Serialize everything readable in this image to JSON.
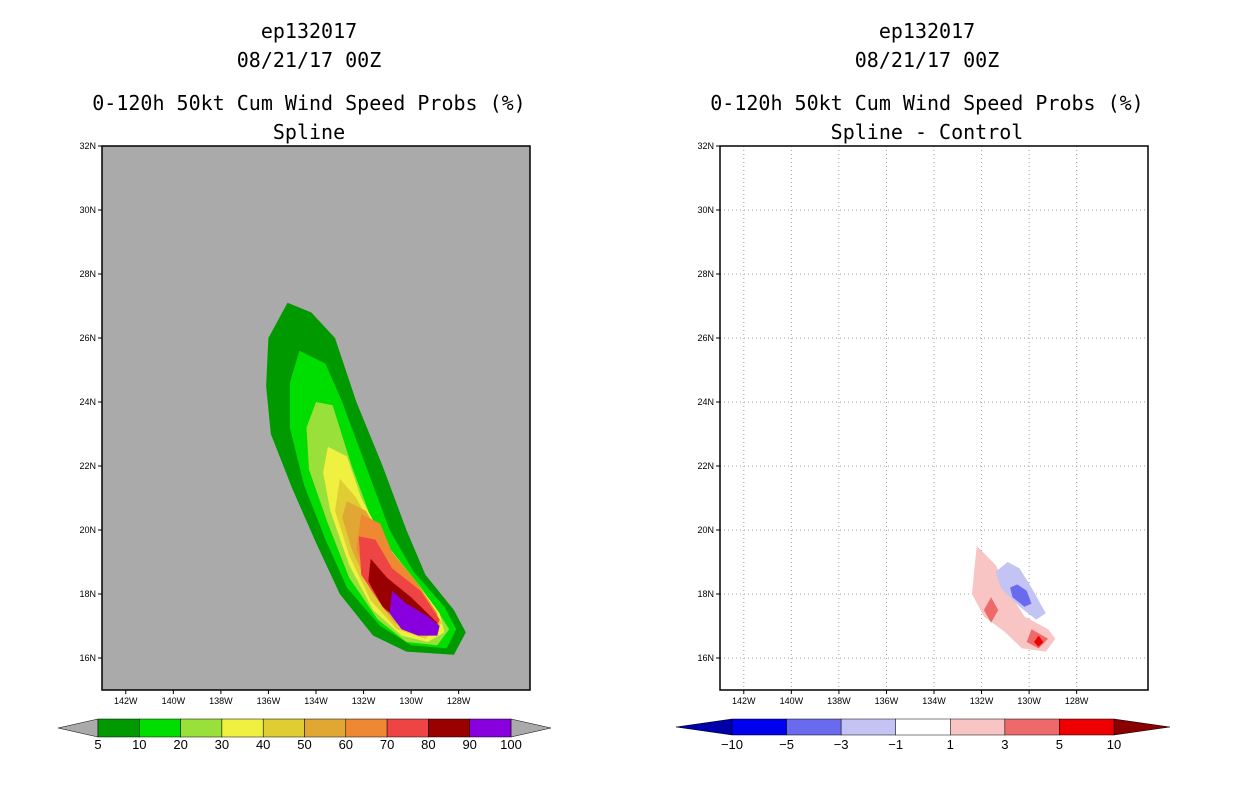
{
  "chart_data": [
    {
      "type": "contour",
      "storm": "ep132017",
      "date": "08/21/17 00Z",
      "title": "0-120h 50kt Cum Wind Speed Probs (%)",
      "subtitle": "Spline",
      "xlim": [
        -143,
        -125
      ],
      "ylim": [
        15,
        32
      ],
      "xticks": [
        "142W",
        "140W",
        "138W",
        "136W",
        "134W",
        "132W",
        "130W",
        "128W"
      ],
      "yticks": [
        "32N",
        "30N",
        "28N",
        "26N",
        "24N",
        "22N",
        "20N",
        "18N",
        "16N"
      ],
      "background": "#aaaaaa",
      "colorbar": {
        "levels": [
          "5",
          "10",
          "20",
          "30",
          "40",
          "50",
          "60",
          "70",
          "80",
          "90",
          "100"
        ],
        "colors": [
          "#009900",
          "#00dd00",
          "#99e03a",
          "#f0f040",
          "#e0cc33",
          "#e0a833",
          "#ee8833",
          "#ee4444",
          "#990000",
          "#8800dd"
        ],
        "end_color": "#aaaaaa"
      },
      "contours": [
        {
          "level": 5,
          "color": "#009900",
          "points": [
            [
              -135.2,
              27.1
            ],
            [
              -134.2,
              26.8
            ],
            [
              -133.2,
              26.0
            ],
            [
              -132.3,
              24.0
            ],
            [
              -131.2,
              22.0
            ],
            [
              -130.2,
              20.0
            ],
            [
              -129.4,
              18.6
            ],
            [
              -128.2,
              17.5
            ],
            [
              -127.7,
              16.8
            ],
            [
              -128.2,
              16.1
            ],
            [
              -130.2,
              16.2
            ],
            [
              -131.6,
              16.7
            ],
            [
              -133.0,
              18.0
            ],
            [
              -134.0,
              19.6
            ],
            [
              -135.0,
              21.3
            ],
            [
              -135.9,
              23.0
            ],
            [
              -136.1,
              24.5
            ],
            [
              -136.0,
              26.0
            ]
          ]
        },
        {
          "level": 10,
          "color": "#00dd00",
          "points": [
            [
              -134.7,
              25.6
            ],
            [
              -133.6,
              25.2
            ],
            [
              -132.9,
              24.0
            ],
            [
              -131.9,
              22.0
            ],
            [
              -130.9,
              20.0
            ],
            [
              -129.9,
              18.7
            ],
            [
              -128.6,
              17.6
            ],
            [
              -128.1,
              16.9
            ],
            [
              -128.5,
              16.3
            ],
            [
              -130.0,
              16.4
            ],
            [
              -131.3,
              17.0
            ],
            [
              -132.7,
              18.2
            ],
            [
              -133.6,
              19.7
            ],
            [
              -134.5,
              21.4
            ],
            [
              -135.1,
              23.2
            ],
            [
              -135.1,
              24.6
            ]
          ]
        },
        {
          "level": 20,
          "color": "#99e03a",
          "points": [
            [
              -134.0,
              24.0
            ],
            [
              -133.3,
              23.9
            ],
            [
              -132.5,
              22.0
            ],
            [
              -131.5,
              20.0
            ],
            [
              -130.4,
              18.7
            ],
            [
              -129.0,
              17.6
            ],
            [
              -128.4,
              16.9
            ],
            [
              -128.9,
              16.4
            ],
            [
              -130.2,
              16.5
            ],
            [
              -131.4,
              17.2
            ],
            [
              -132.6,
              18.5
            ],
            [
              -133.5,
              20.2
            ],
            [
              -134.3,
              21.9
            ],
            [
              -134.4,
              23.2
            ]
          ]
        },
        {
          "level": 30,
          "color": "#f0f040",
          "points": [
            [
              -133.5,
              22.6
            ],
            [
              -132.7,
              22.3
            ],
            [
              -132.1,
              21.0
            ],
            [
              -131.1,
              19.6
            ],
            [
              -129.8,
              18.4
            ],
            [
              -128.8,
              17.4
            ],
            [
              -128.6,
              16.8
            ],
            [
              -129.3,
              16.5
            ],
            [
              -130.4,
              16.7
            ],
            [
              -131.6,
              17.5
            ],
            [
              -132.6,
              18.9
            ],
            [
              -133.4,
              20.6
            ],
            [
              -133.7,
              21.8
            ]
          ]
        },
        {
          "level": 40,
          "color": "#e0cc33",
          "points": [
            [
              -133.0,
              21.6
            ],
            [
              -132.3,
              21.0
            ],
            [
              -131.6,
              20.0
            ],
            [
              -130.5,
              18.9
            ],
            [
              -129.4,
              17.9
            ],
            [
              -128.7,
              17.1
            ],
            [
              -129.4,
              16.6
            ],
            [
              -130.6,
              16.9
            ],
            [
              -131.7,
              17.8
            ],
            [
              -132.6,
              19.2
            ],
            [
              -133.2,
              20.6
            ]
          ]
        },
        {
          "level": 50,
          "color": "#e0a833",
          "points": [
            [
              -132.7,
              20.9
            ],
            [
              -131.9,
              20.6
            ],
            [
              -131.2,
              19.7
            ],
            [
              -130.1,
              18.6
            ],
            [
              -129.1,
              17.6
            ],
            [
              -128.8,
              17.0
            ],
            [
              -129.5,
              16.7
            ],
            [
              -130.7,
              17.1
            ],
            [
              -131.7,
              18.1
            ],
            [
              -132.5,
              19.4
            ],
            [
              -132.9,
              20.4
            ]
          ]
        },
        {
          "level": 60,
          "color": "#ee8833",
          "points": [
            [
              -132.1,
              20.5
            ],
            [
              -131.3,
              20.2
            ],
            [
              -130.8,
              19.3
            ],
            [
              -129.8,
              18.4
            ],
            [
              -128.9,
              17.4
            ],
            [
              -128.9,
              16.9
            ],
            [
              -129.6,
              16.8
            ],
            [
              -130.8,
              17.3
            ],
            [
              -131.8,
              18.4
            ],
            [
              -132.3,
              19.4
            ]
          ]
        },
        {
          "level": 70,
          "color": "#ee4444",
          "points": [
            [
              -132.2,
              19.8
            ],
            [
              -131.5,
              19.7
            ],
            [
              -130.8,
              18.8
            ],
            [
              -129.6,
              18.1
            ],
            [
              -128.8,
              17.2
            ],
            [
              -129.0,
              16.8
            ],
            [
              -130.0,
              16.9
            ],
            [
              -131.1,
              17.5
            ],
            [
              -132.1,
              18.6
            ]
          ]
        },
        {
          "level": 80,
          "color": "#990000",
          "points": [
            [
              -131.7,
              19.1
            ],
            [
              -131.0,
              18.5
            ],
            [
              -130.0,
              17.9
            ],
            [
              -128.9,
              17.1
            ],
            [
              -129.3,
              16.9
            ],
            [
              -130.2,
              17.0
            ],
            [
              -131.2,
              17.6
            ],
            [
              -131.8,
              18.4
            ]
          ]
        },
        {
          "level": 90,
          "color": "#8800dd",
          "points": [
            [
              -130.8,
              18.1
            ],
            [
              -130.2,
              17.7
            ],
            [
              -129.3,
              17.3
            ],
            [
              -128.8,
              17.0
            ],
            [
              -128.9,
              16.7
            ],
            [
              -129.7,
              16.7
            ],
            [
              -130.4,
              16.9
            ],
            [
              -130.9,
              17.4
            ]
          ]
        }
      ]
    },
    {
      "type": "contour",
      "storm": "ep132017",
      "date": "08/21/17 00Z",
      "title": "0-120h 50kt Cum Wind Speed Probs (%)",
      "subtitle": "Spline - Control",
      "xlim": [
        -143,
        -125
      ],
      "ylim": [
        15,
        32
      ],
      "xticks": [
        "142W",
        "140W",
        "138W",
        "136W",
        "134W",
        "132W",
        "130W",
        "128W"
      ],
      "yticks": [
        "32N",
        "30N",
        "28N",
        "26N",
        "24N",
        "22N",
        "20N",
        "18N",
        "16N"
      ],
      "background": "#ffffff",
      "grid": true,
      "colorbar": {
        "levels": [
          "-10",
          "-5",
          "-3",
          "-1",
          "1",
          "3",
          "5",
          "10"
        ],
        "colors": [
          "#0000aa",
          "#0000ee",
          "#6a6aee",
          "#c4c4f4",
          "#ffffff",
          "#f8c4c4",
          "#ee6a6a",
          "#ee0000",
          "#880000"
        ]
      },
      "contours": [
        {
          "level": 1,
          "color": "#f8c4c4",
          "points": [
            [
              -132.2,
              19.5
            ],
            [
              -131.4,
              18.9
            ],
            [
              -130.8,
              18.0
            ],
            [
              -130.2,
              17.3
            ],
            [
              -129.2,
              16.9
            ],
            [
              -128.9,
              16.6
            ],
            [
              -129.3,
              16.2
            ],
            [
              -130.3,
              16.3
            ],
            [
              -131.0,
              16.8
            ],
            [
              -131.9,
              17.3
            ],
            [
              -132.4,
              18.0
            ],
            [
              -132.3,
              18.8
            ]
          ]
        },
        {
          "level": 3,
          "color": "#ee6a6a",
          "points": [
            [
              -131.6,
              17.9
            ],
            [
              -131.3,
              17.5
            ],
            [
              -131.6,
              17.1
            ],
            [
              -131.9,
              17.5
            ]
          ]
        },
        {
          "level": 3,
          "color": "#ee6a6a",
          "points": [
            [
              -129.9,
              16.9
            ],
            [
              -129.2,
              16.6
            ],
            [
              -129.6,
              16.3
            ],
            [
              -130.1,
              16.5
            ]
          ]
        },
        {
          "level": 5,
          "color": "#ee0000",
          "points": [
            [
              -129.6,
              16.7
            ],
            [
              -129.4,
              16.5
            ],
            [
              -129.6,
              16.35
            ],
            [
              -129.8,
              16.5
            ]
          ]
        },
        {
          "level": -1,
          "color": "#c4c4f4",
          "points": [
            [
              -130.9,
              19.0
            ],
            [
              -130.4,
              18.8
            ],
            [
              -129.9,
              18.2
            ],
            [
              -129.3,
              17.4
            ],
            [
              -129.7,
              17.2
            ],
            [
              -130.4,
              17.6
            ],
            [
              -131.2,
              18.2
            ],
            [
              -131.4,
              18.7
            ]
          ]
        },
        {
          "level": -3,
          "color": "#6a6aee",
          "points": [
            [
              -130.5,
              18.3
            ],
            [
              -130.1,
              18.1
            ],
            [
              -129.9,
              17.7
            ],
            [
              -130.2,
              17.6
            ],
            [
              -130.7,
              17.9
            ],
            [
              -130.8,
              18.2
            ]
          ]
        }
      ]
    }
  ]
}
